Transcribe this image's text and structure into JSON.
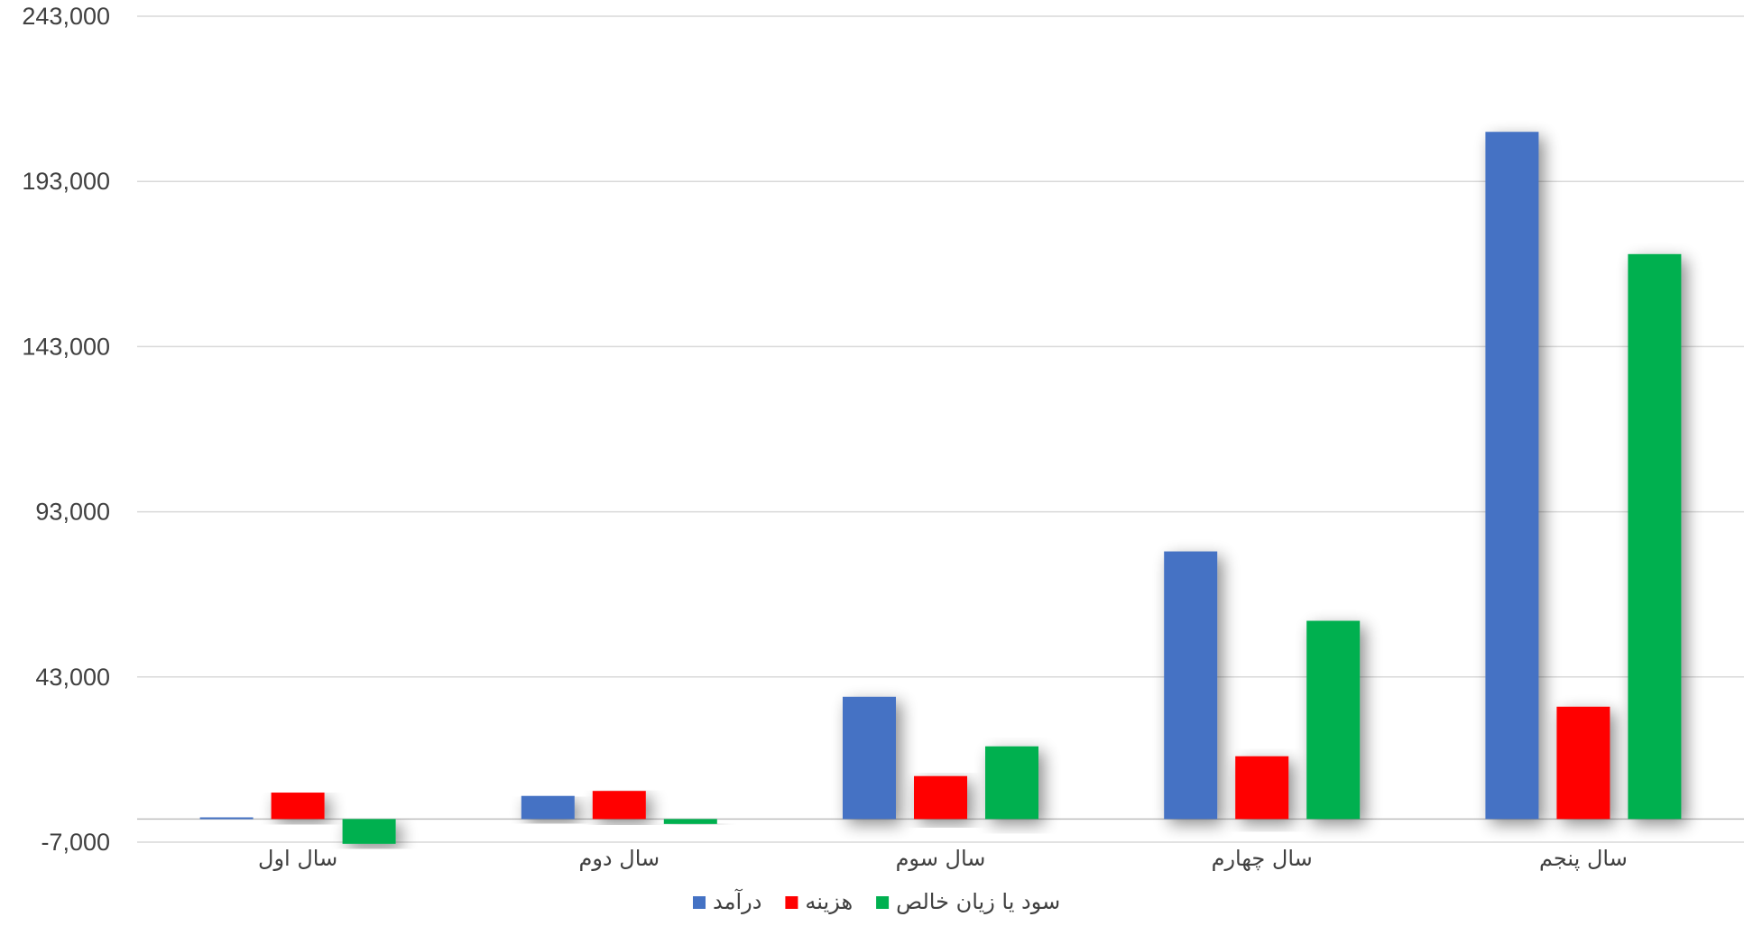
{
  "chart_data": {
    "type": "bar",
    "categories": [
      "سال اول",
      "سال دوم",
      "سال سوم",
      "سال چهارم",
      "سال پنجم"
    ],
    "series": [
      {
        "name": "درآمد",
        "color": "#4472C4",
        "values": [
          500,
          7000,
          37000,
          81000,
          208000
        ]
      },
      {
        "name": "هزینه",
        "color": "#FF0000",
        "values": [
          8000,
          8500,
          13000,
          19000,
          34000
        ]
      },
      {
        "name": "سود یا زیان خالص",
        "color": "#00B050",
        "values": [
          -7500,
          -1500,
          22000,
          60000,
          171000
        ]
      }
    ],
    "y_ticks": [
      "243,000",
      "193,000",
      "143,000",
      "93,000",
      "43,000",
      "-7,000"
    ],
    "ylim": [
      -7000,
      243000
    ],
    "grid": true,
    "legend_position": "bottom",
    "bar_shadow": true
  }
}
